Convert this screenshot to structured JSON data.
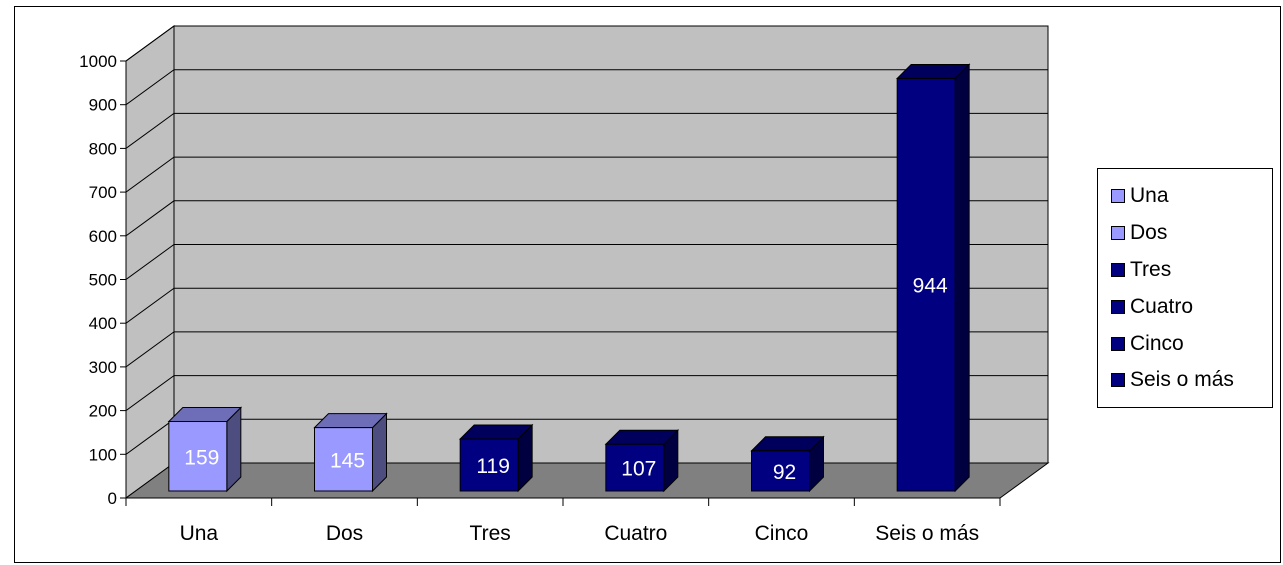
{
  "chart_data": {
    "type": "bar",
    "title": "",
    "xlabel": "",
    "ylabel": "",
    "categories": [
      "Una",
      "Dos",
      "Tres",
      "Cuatro",
      "Cinco",
      "Seis o más"
    ],
    "values": [
      159,
      145,
      119,
      107,
      92,
      944
    ],
    "data_labels": [
      "159",
      "145",
      "119",
      "107",
      "92",
      "944"
    ],
    "ylim": [
      0,
      1000
    ],
    "y_ticks": [
      "0",
      "100",
      "200",
      "300",
      "400",
      "500",
      "600",
      "700",
      "800",
      "900",
      "1000"
    ],
    "grid": true,
    "three_d": true,
    "legend_position": "right",
    "legend": [
      "Una",
      "Dos",
      "Tres",
      "Cuatro",
      "Cinco",
      "Seis o más"
    ],
    "bar_colors": [
      "#9999ff",
      "#9999ff",
      "#000080",
      "#000080",
      "#000080",
      "#000080"
    ],
    "colors": {
      "wall": "#c0c0c0",
      "floor": "#808080",
      "light_bar": "#9999ff",
      "dark_bar": "#000080"
    }
  }
}
